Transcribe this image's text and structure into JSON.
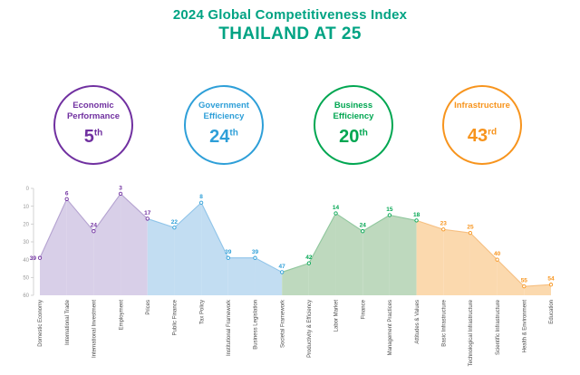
{
  "header": {
    "title": "2024 Global Competitiveness Index",
    "subtitle": "THAILAND AT 25",
    "color": "#00a383"
  },
  "factors": [
    {
      "line1": "Economic",
      "line2": "Performance",
      "rank": "5",
      "suffix": "th",
      "color": "#7030a0"
    },
    {
      "line1": "Government",
      "line2": "Efficiency",
      "rank": "24",
      "suffix": "th",
      "color": "#2e9fd8"
    },
    {
      "line1": "Business",
      "line2": "Efficiency",
      "rank": "20",
      "suffix": "th",
      "color": "#00a651"
    },
    {
      "line1": "Infrastructure",
      "line2": "",
      "rank": "43",
      "suffix": "rd",
      "color": "#f7941d"
    }
  ],
  "chart_data": {
    "type": "area",
    "title": "Thailand sub-factor rankings by competitiveness factor",
    "categories": [
      "Domestic Economy",
      "International Trade",
      "International Investment",
      "Employment",
      "Prices",
      "Public Finance",
      "Tax Policy",
      "Institutional Framework",
      "Business Legislation",
      "Societal Framework",
      "Productivity & Efficiency",
      "Labor Market",
      "Finance",
      "Management Practices",
      "Attitudes & Values",
      "Basic Infrastructure",
      "Technological Infrastructure",
      "Scientific Infrastructure",
      "Health & Environment",
      "Education"
    ],
    "values": [
      39,
      6,
      24,
      3,
      17,
      22,
      8,
      39,
      39,
      47,
      42,
      14,
      24,
      15,
      18,
      23,
      25,
      40,
      55,
      54
    ],
    "points_per_group": 5,
    "groups": [
      {
        "name": "Economic Performance",
        "color": "#7030a0",
        "fill": "#d8cfe8",
        "line": "#b4a2d0"
      },
      {
        "name": "Government Efficiency",
        "color": "#2e9fd8",
        "fill": "#c2ddf2",
        "line": "#8fc4e9"
      },
      {
        "name": "Business Efficiency",
        "color": "#00a651",
        "fill": "#bed9be",
        "line": "#8fc79d"
      },
      {
        "name": "Infrastructure",
        "color": "#f7941d",
        "fill": "#fbd9ae",
        "line": "#f6bf81"
      }
    ],
    "ylabel": "",
    "xlabel": "",
    "ylim": [
      0,
      60
    ],
    "y_inverted": true,
    "yticks": [
      0,
      10,
      20,
      30,
      40,
      50,
      60
    ],
    "grid": false,
    "legend": "none"
  }
}
